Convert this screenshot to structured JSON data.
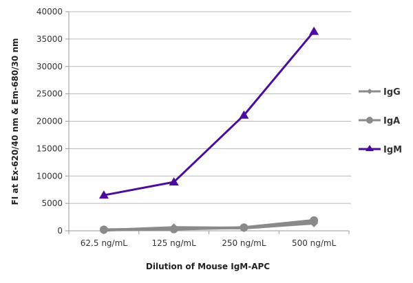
{
  "chart_data": {
    "type": "line",
    "title": "",
    "xlabel": "Dilution of Mouse IgM-APC",
    "ylabel": "FI at Ex-620/40 nm & Em-680/30 nm",
    "categories": [
      "62.5 ng/mL",
      "125 ng/mL",
      "250 ng/mL",
      "500 ng/mL"
    ],
    "ylim": [
      0,
      40000
    ],
    "yticks": [
      0,
      5000,
      10000,
      15000,
      20000,
      25000,
      30000,
      35000,
      40000
    ],
    "grid": true,
    "legend_position": "right",
    "series": [
      {
        "name": "IgG",
        "marker": "diamond",
        "color": "#8a8a8a",
        "values": [
          100,
          600,
          500,
          1400
        ]
      },
      {
        "name": "IgA",
        "marker": "circle",
        "color": "#8a8a8a",
        "values": [
          200,
          300,
          600,
          1900
        ]
      },
      {
        "name": "IgM",
        "marker": "triangle",
        "color": "#4b0c9e",
        "values": [
          6500,
          8900,
          21100,
          36400
        ]
      }
    ]
  }
}
